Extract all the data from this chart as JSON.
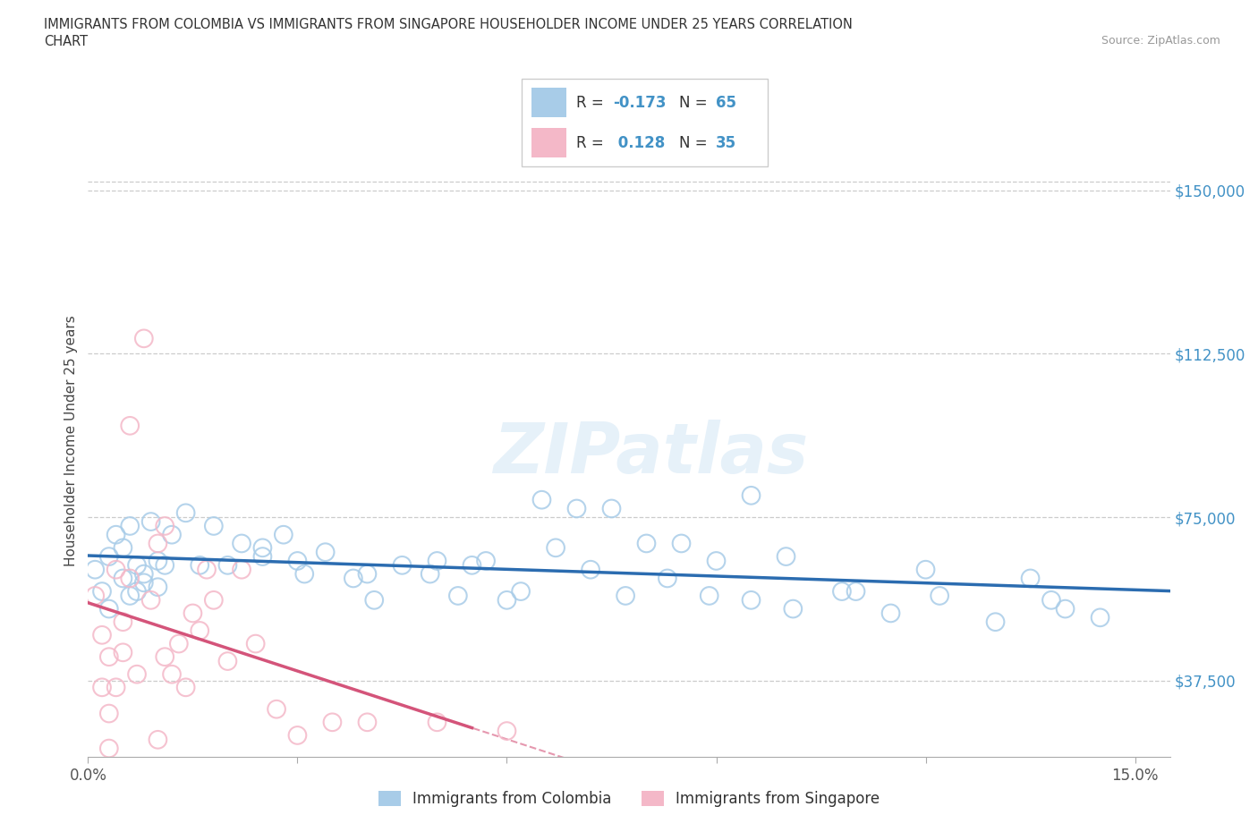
{
  "title_line1": "IMMIGRANTS FROM COLOMBIA VS IMMIGRANTS FROM SINGAPORE HOUSEHOLDER INCOME UNDER 25 YEARS CORRELATION",
  "title_line2": "CHART",
  "source": "Source: ZipAtlas.com",
  "ylabel": "Householder Income Under 25 years",
  "xlim": [
    0.0,
    0.155
  ],
  "ylim": [
    20000,
    165000
  ],
  "xtick_positions": [
    0.0,
    0.03,
    0.06,
    0.09,
    0.12,
    0.15
  ],
  "xtick_labels": [
    "0.0%",
    "",
    "",
    "",
    "",
    "15.0%"
  ],
  "ytick_positions": [
    37500,
    75000,
    112500,
    150000
  ],
  "ytick_labels": [
    "$37,500",
    "$75,000",
    "$112,500",
    "$150,000"
  ],
  "colombia_color": "#a8cce8",
  "colombia_line_color": "#2b6cb0",
  "singapore_color": "#f4b8c8",
  "singapore_line_color": "#d4547a",
  "legend_R_N_color": "#4292c6",
  "colombia_scatter_x": [
    0.001,
    0.002,
    0.003,
    0.003,
    0.004,
    0.005,
    0.005,
    0.006,
    0.006,
    0.007,
    0.007,
    0.008,
    0.008,
    0.009,
    0.01,
    0.01,
    0.011,
    0.012,
    0.014,
    0.016,
    0.018,
    0.02,
    0.022,
    0.025,
    0.028,
    0.031,
    0.034,
    0.038,
    0.041,
    0.045,
    0.049,
    0.053,
    0.057,
    0.062,
    0.067,
    0.072,
    0.077,
    0.083,
    0.089,
    0.095,
    0.101,
    0.108,
    0.115,
    0.122,
    0.13,
    0.138,
    0.145,
    0.06,
    0.04,
    0.075,
    0.09,
    0.11,
    0.055,
    0.07,
    0.085,
    0.1,
    0.12,
    0.135,
    0.05,
    0.03,
    0.065,
    0.08,
    0.095,
    0.14,
    0.025
  ],
  "colombia_scatter_y": [
    63000,
    58000,
    66000,
    54000,
    71000,
    61000,
    68000,
    57000,
    73000,
    64000,
    58000,
    62000,
    60000,
    74000,
    65000,
    59000,
    64000,
    71000,
    76000,
    64000,
    73000,
    64000,
    69000,
    66000,
    71000,
    62000,
    67000,
    61000,
    56000,
    64000,
    62000,
    57000,
    65000,
    58000,
    68000,
    63000,
    57000,
    61000,
    57000,
    56000,
    54000,
    58000,
    53000,
    57000,
    51000,
    56000,
    52000,
    56000,
    62000,
    77000,
    65000,
    58000,
    64000,
    77000,
    69000,
    66000,
    63000,
    61000,
    65000,
    65000,
    79000,
    69000,
    80000,
    54000,
    68000
  ],
  "singapore_scatter_x": [
    0.001,
    0.002,
    0.002,
    0.003,
    0.003,
    0.004,
    0.004,
    0.005,
    0.005,
    0.006,
    0.006,
    0.007,
    0.008,
    0.009,
    0.01,
    0.011,
    0.011,
    0.012,
    0.013,
    0.014,
    0.015,
    0.016,
    0.017,
    0.018,
    0.02,
    0.022,
    0.024,
    0.027,
    0.03,
    0.035,
    0.04,
    0.05,
    0.06,
    0.01,
    0.003
  ],
  "singapore_scatter_y": [
    57000,
    48000,
    36000,
    30000,
    43000,
    36000,
    63000,
    51000,
    44000,
    61000,
    96000,
    39000,
    116000,
    56000,
    69000,
    43000,
    73000,
    39000,
    46000,
    36000,
    53000,
    49000,
    63000,
    56000,
    42000,
    63000,
    46000,
    31000,
    25000,
    28000,
    28000,
    28000,
    26000,
    24000,
    22000
  ]
}
